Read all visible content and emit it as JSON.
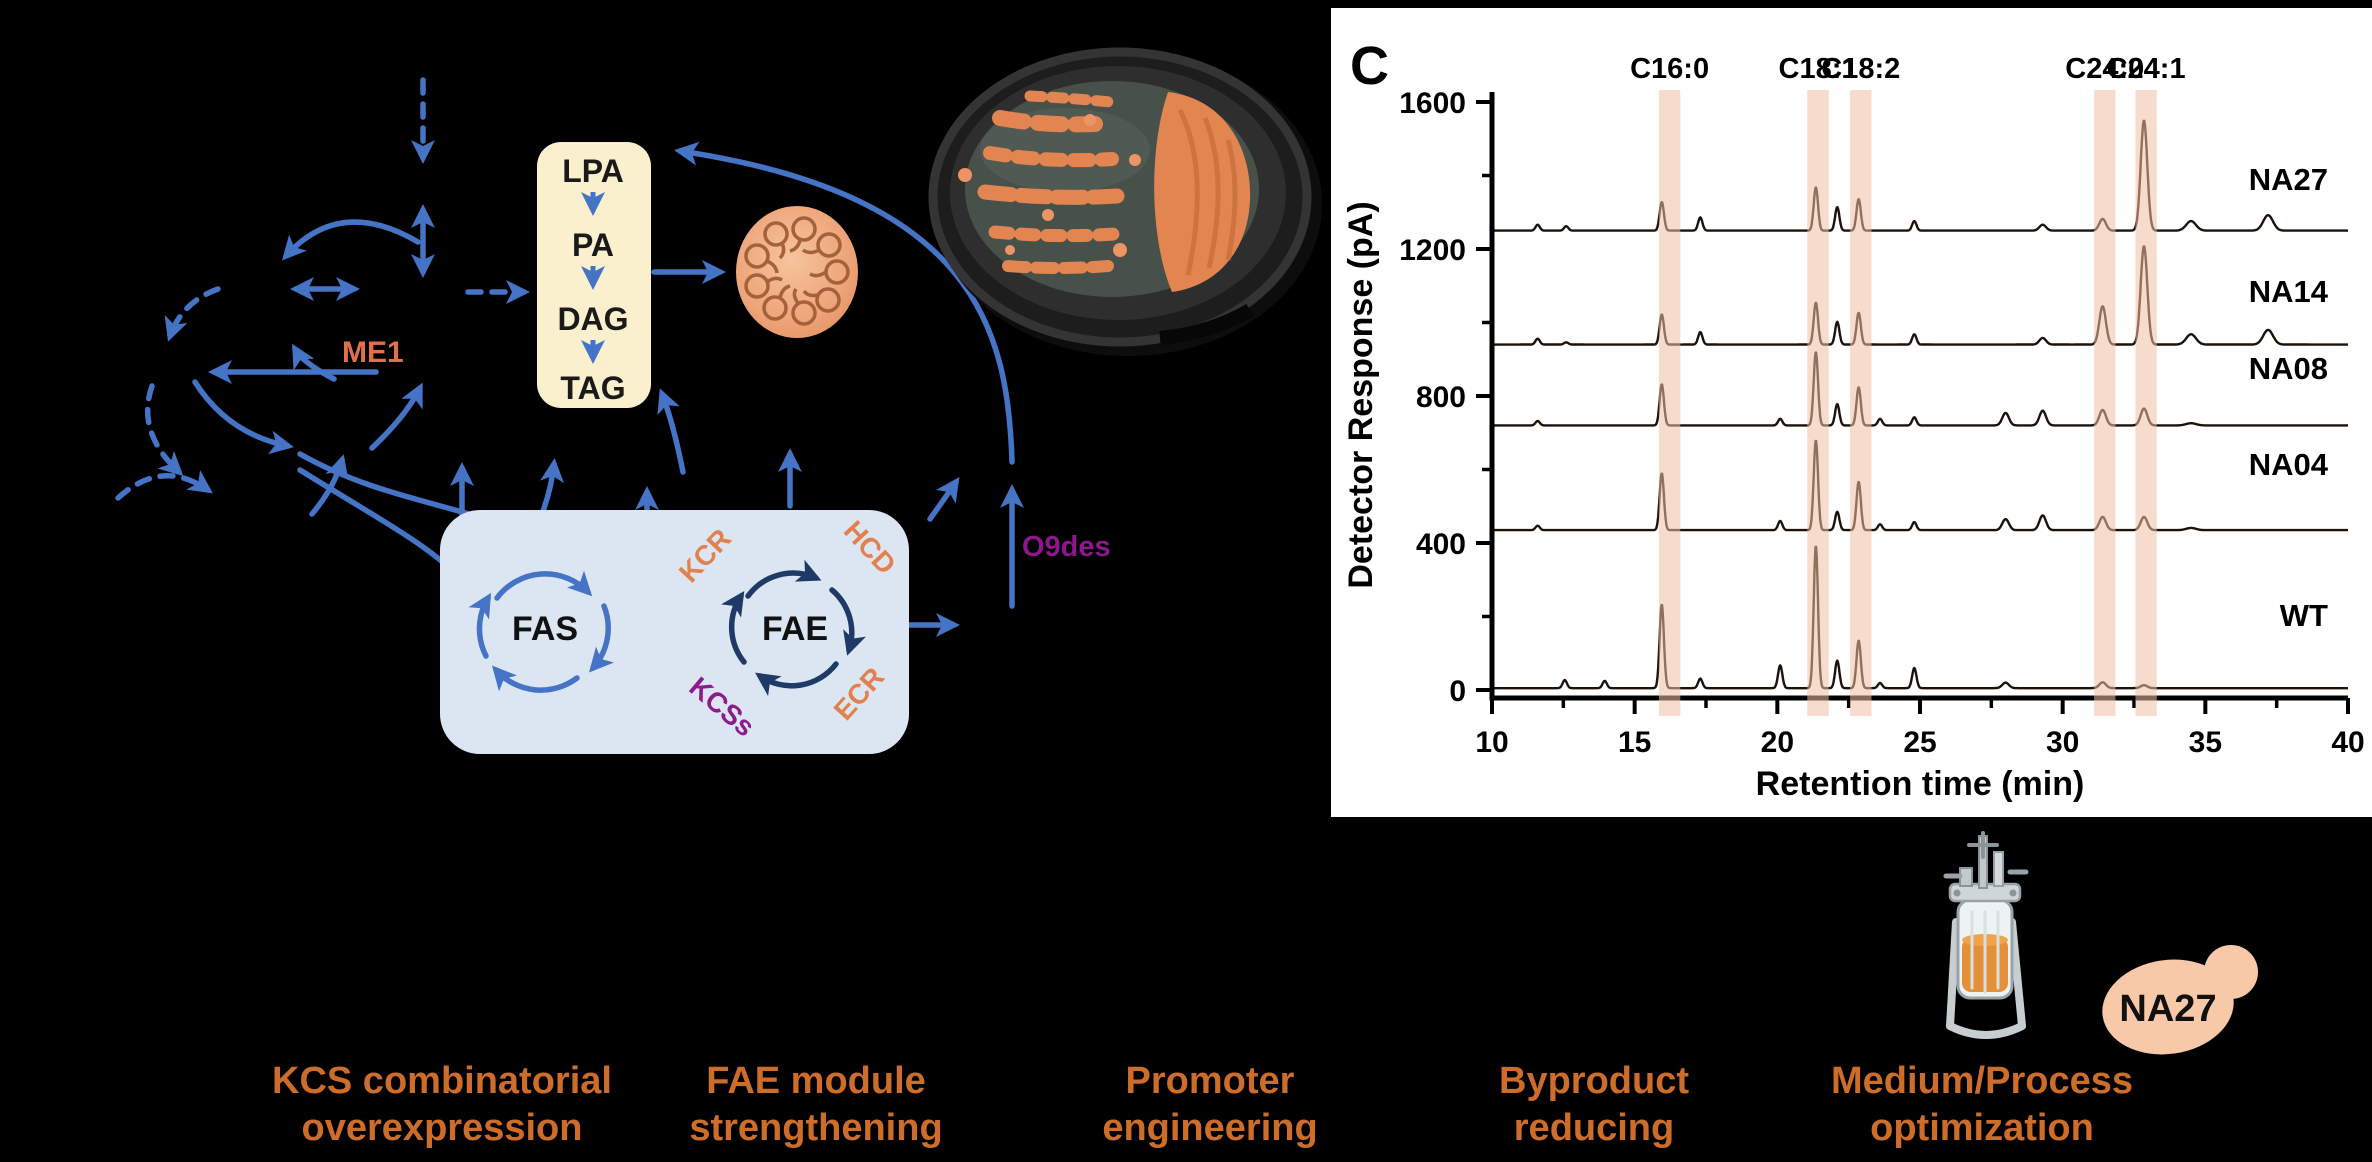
{
  "pathway": {
    "acyl_box": {
      "items": [
        "LPA",
        "PA",
        "DAG",
        "TAG"
      ]
    },
    "me1": "ME1",
    "fas": "FAS",
    "fae": "FAE",
    "kcr": "KCR",
    "hcd": "HCD",
    "ecr": "ECR",
    "kcss": "KCSs",
    "o9des": "O9des"
  },
  "fermentation": {
    "strain_label": "NA27"
  },
  "strategies": [
    {
      "line1": "KCS combinatorial",
      "line2": "overexpression"
    },
    {
      "line1": "FAE module",
      "line2": "strengthening"
    },
    {
      "line1": "Promoter",
      "line2": "engineering"
    },
    {
      "line1": "Byproduct",
      "line2": "reducing"
    },
    {
      "line1": "Medium/Process",
      "line2": "optimization"
    }
  ],
  "colors": {
    "arrow_blue": "#4573c5",
    "cycle_navy": "#1f3a66",
    "acyl_box_fill": "#faf0cd",
    "elongation_box_fill": "#dce6f2",
    "enzyme_orange": "#e0814e",
    "me1_orange": "#e0714a",
    "purple": "#8e178e",
    "strategy_orange": "#cd6d29",
    "colony_orange": "#e28550",
    "cell_peach": "#f8c9a8"
  },
  "chart_data": {
    "type": "line",
    "panel_label": "C",
    "title": "",
    "xlabel": "Retention time (min)",
    "ylabel": "Detector Response (pA)",
    "xlim": [
      10,
      40
    ],
    "ylim": [
      -20,
      1600
    ],
    "xticks": [
      10,
      15,
      20,
      25,
      30,
      35,
      40
    ],
    "yticks": [
      0,
      400,
      800,
      1200,
      1600
    ],
    "yminor": [
      200,
      600,
      1000,
      1400
    ],
    "xminor_step": 2.5,
    "grid": false,
    "legend_position": "right-of-each-trace",
    "trace_color": "#1c1209",
    "band_color": "#f0c0a4",
    "peak_annotations": [
      {
        "label": "C16:0",
        "band": [
          15.85,
          16.6
        ]
      },
      {
        "label": "C18:1",
        "band": [
          21.05,
          21.8
        ]
      },
      {
        "label": "C18:2",
        "band": [
          22.55,
          23.3
        ]
      },
      {
        "label": "C24:0",
        "band": [
          31.1,
          31.85
        ]
      },
      {
        "label": "C24:1",
        "band": [
          32.55,
          33.3
        ]
      }
    ],
    "traces": [
      {
        "name": "WT",
        "baseline": 5,
        "label_dy": -62,
        "peaks": [
          [
            12.55,
            22
          ],
          [
            13.95,
            20
          ],
          [
            15.95,
            228
          ],
          [
            17.3,
            26
          ],
          [
            20.1,
            62
          ],
          [
            21.35,
            388
          ],
          [
            22.1,
            75
          ],
          [
            22.85,
            130
          ],
          [
            23.6,
            14
          ],
          [
            24.8,
            55
          ],
          [
            28.0,
            15
          ],
          [
            31.4,
            16
          ],
          [
            32.85,
            8
          ]
        ]
      },
      {
        "name": "NA04",
        "baseline": 435,
        "label_dy": -55,
        "peaks": [
          [
            11.6,
            12
          ],
          [
            15.95,
            155
          ],
          [
            20.1,
            25
          ],
          [
            21.35,
            245
          ],
          [
            22.1,
            50
          ],
          [
            22.85,
            132
          ],
          [
            23.6,
            16
          ],
          [
            24.8,
            22
          ],
          [
            28.0,
            30
          ],
          [
            29.3,
            40
          ],
          [
            31.4,
            36
          ],
          [
            32.85,
            36
          ],
          [
            34.5,
            6
          ]
        ]
      },
      {
        "name": "NA08",
        "baseline": 720,
        "label_dy": -46,
        "peaks": [
          [
            11.6,
            12
          ],
          [
            15.95,
            112
          ],
          [
            20.1,
            18
          ],
          [
            21.35,
            200
          ],
          [
            22.1,
            58
          ],
          [
            22.85,
            104
          ],
          [
            23.6,
            18
          ],
          [
            24.8,
            22
          ],
          [
            28.0,
            34
          ],
          [
            29.3,
            40
          ],
          [
            31.4,
            42
          ],
          [
            32.85,
            46
          ],
          [
            34.5,
            6
          ]
        ]
      },
      {
        "name": "NA14",
        "baseline": 940,
        "label_dy": -43,
        "peaks": [
          [
            11.6,
            16
          ],
          [
            12.6,
            6
          ],
          [
            15.95,
            82
          ],
          [
            17.3,
            34
          ],
          [
            21.35,
            114
          ],
          [
            22.1,
            62
          ],
          [
            22.85,
            87
          ],
          [
            24.8,
            28
          ],
          [
            29.3,
            18
          ],
          [
            31.4,
            104
          ],
          [
            32.85,
            268
          ],
          [
            34.5,
            28
          ],
          [
            37.2,
            40
          ]
        ]
      },
      {
        "name": "NA27",
        "baseline": 1250,
        "label_dy": -41,
        "peaks": [
          [
            11.6,
            16
          ],
          [
            12.6,
            12
          ],
          [
            15.95,
            78
          ],
          [
            17.3,
            36
          ],
          [
            21.35,
            118
          ],
          [
            22.1,
            64
          ],
          [
            22.85,
            86
          ],
          [
            24.8,
            26
          ],
          [
            29.3,
            16
          ],
          [
            31.4,
            32
          ],
          [
            32.85,
            300
          ],
          [
            34.5,
            26
          ],
          [
            37.2,
            42
          ]
        ]
      }
    ]
  }
}
